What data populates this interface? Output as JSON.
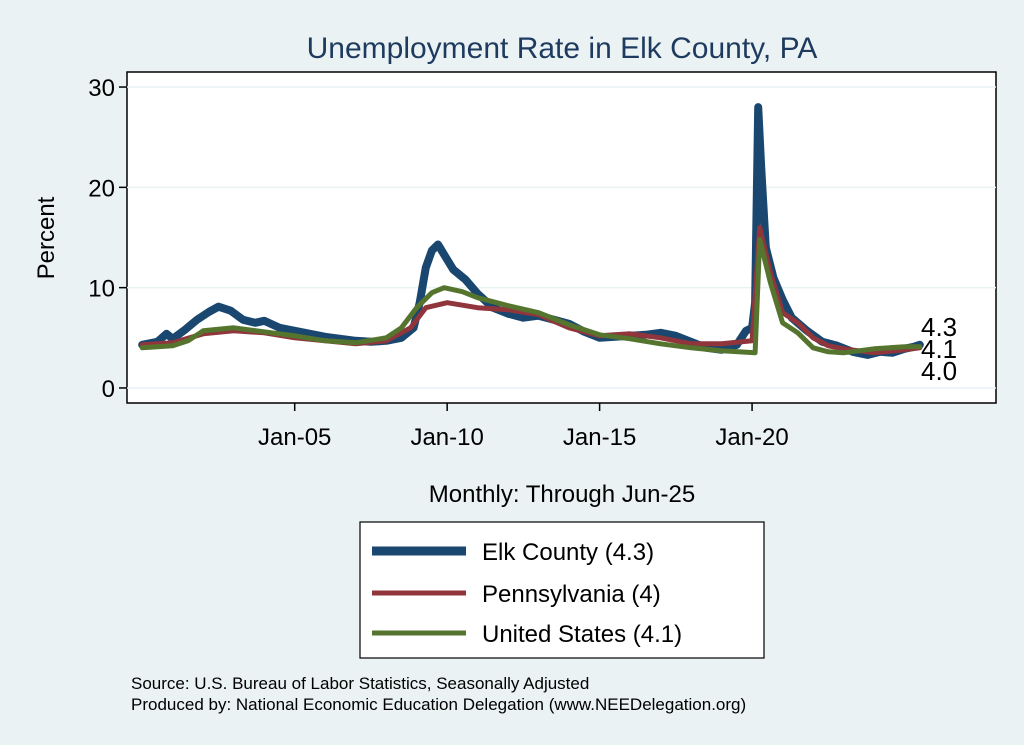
{
  "chart_data": {
    "type": "line",
    "title": "Unemployment Rate in Elk  County, PA",
    "xlabel": "Monthly: Through Jun-25",
    "ylabel": "Percent",
    "ylim": [
      -1.5,
      31.5
    ],
    "xlim": [
      1999.5,
      2028.0
    ],
    "y_ticks": [
      0,
      10,
      20,
      30
    ],
    "x_ticks": [
      {
        "value": 2005.0,
        "label": "Jan-05"
      },
      {
        "value": 2010.0,
        "label": "Jan-10"
      },
      {
        "value": 2015.0,
        "label": "Jan-15"
      },
      {
        "value": 2020.0,
        "label": "Jan-20"
      }
    ],
    "grid": true,
    "series": [
      {
        "name": "Elk  County",
        "legend": "Elk  County (4.3)",
        "color": "#1a476f",
        "last_value": "4.3",
        "points": [
          [
            2000.0,
            4.3
          ],
          [
            2000.5,
            4.6
          ],
          [
            2000.8,
            5.4
          ],
          [
            2001.0,
            4.9
          ],
          [
            2001.4,
            5.8
          ],
          [
            2001.8,
            6.8
          ],
          [
            2002.2,
            7.6
          ],
          [
            2002.5,
            8.1
          ],
          [
            2002.9,
            7.7
          ],
          [
            2003.3,
            6.8
          ],
          [
            2003.7,
            6.5
          ],
          [
            2004.0,
            6.7
          ],
          [
            2004.5,
            6.0
          ],
          [
            2005.0,
            5.7
          ],
          [
            2005.5,
            5.4
          ],
          [
            2006.0,
            5.1
          ],
          [
            2006.5,
            4.9
          ],
          [
            2007.0,
            4.7
          ],
          [
            2007.5,
            4.6
          ],
          [
            2008.0,
            4.7
          ],
          [
            2008.5,
            5.0
          ],
          [
            2008.9,
            6.0
          ],
          [
            2009.1,
            8.5
          ],
          [
            2009.3,
            12.0
          ],
          [
            2009.5,
            13.7
          ],
          [
            2009.7,
            14.3
          ],
          [
            2009.9,
            13.3
          ],
          [
            2010.2,
            11.8
          ],
          [
            2010.6,
            10.8
          ],
          [
            2011.0,
            9.4
          ],
          [
            2011.5,
            8.0
          ],
          [
            2012.0,
            7.4
          ],
          [
            2012.5,
            7.0
          ],
          [
            2013.0,
            7.2
          ],
          [
            2013.5,
            6.8
          ],
          [
            2014.0,
            6.4
          ],
          [
            2014.5,
            5.6
          ],
          [
            2015.0,
            5.0
          ],
          [
            2015.5,
            5.1
          ],
          [
            2016.0,
            5.2
          ],
          [
            2016.5,
            5.3
          ],
          [
            2017.0,
            5.5
          ],
          [
            2017.5,
            5.2
          ],
          [
            2018.0,
            4.6
          ],
          [
            2018.5,
            4.0
          ],
          [
            2019.0,
            3.8
          ],
          [
            2019.5,
            4.3
          ],
          [
            2019.8,
            5.7
          ],
          [
            2020.0,
            6.0
          ],
          [
            2020.1,
            8.5
          ],
          [
            2020.2,
            28.0
          ],
          [
            2020.3,
            22.0
          ],
          [
            2020.45,
            14.0
          ],
          [
            2020.7,
            11.0
          ],
          [
            2021.0,
            8.8
          ],
          [
            2021.3,
            7.0
          ],
          [
            2021.8,
            5.7
          ],
          [
            2022.3,
            4.6
          ],
          [
            2022.8,
            4.2
          ],
          [
            2023.3,
            3.6
          ],
          [
            2023.8,
            3.3
          ],
          [
            2024.2,
            3.6
          ],
          [
            2024.6,
            3.5
          ],
          [
            2025.0,
            3.9
          ],
          [
            2025.3,
            4.1
          ],
          [
            2025.5,
            4.3
          ]
        ]
      },
      {
        "name": "Pennsylvania",
        "legend": "Pennsylvania (4)",
        "color": "#90353b",
        "last_value": "4.0",
        "points": [
          [
            2000.0,
            4.3
          ],
          [
            2001.0,
            4.5
          ],
          [
            2002.0,
            5.4
          ],
          [
            2003.0,
            5.7
          ],
          [
            2004.0,
            5.5
          ],
          [
            2005.0,
            5.0
          ],
          [
            2006.0,
            4.7
          ],
          [
            2007.0,
            4.4
          ],
          [
            2008.0,
            4.7
          ],
          [
            2008.8,
            6.0
          ],
          [
            2009.3,
            8.0
          ],
          [
            2010.0,
            8.5
          ],
          [
            2011.0,
            8.0
          ],
          [
            2012.0,
            7.8
          ],
          [
            2013.0,
            7.3
          ],
          [
            2014.0,
            6.0
          ],
          [
            2015.0,
            5.2
          ],
          [
            2016.0,
            5.4
          ],
          [
            2017.0,
            5.0
          ],
          [
            2018.0,
            4.4
          ],
          [
            2019.0,
            4.4
          ],
          [
            2020.0,
            4.7
          ],
          [
            2020.25,
            16.0
          ],
          [
            2020.6,
            11.5
          ],
          [
            2021.0,
            7.5
          ],
          [
            2021.5,
            6.5
          ],
          [
            2022.0,
            5.0
          ],
          [
            2022.5,
            4.2
          ],
          [
            2023.0,
            3.9
          ],
          [
            2024.0,
            3.5
          ],
          [
            2025.0,
            3.8
          ],
          [
            2025.5,
            4.0
          ]
        ]
      },
      {
        "name": "United States",
        "legend": "United States (4.1)",
        "color": "#55752f",
        "last_value": "4.1",
        "points": [
          [
            2000.0,
            4.0
          ],
          [
            2001.0,
            4.2
          ],
          [
            2001.5,
            4.7
          ],
          [
            2002.0,
            5.7
          ],
          [
            2003.0,
            6.0
          ],
          [
            2004.0,
            5.6
          ],
          [
            2005.0,
            5.2
          ],
          [
            2006.0,
            4.7
          ],
          [
            2007.0,
            4.5
          ],
          [
            2008.0,
            5.0
          ],
          [
            2008.5,
            6.0
          ],
          [
            2009.0,
            8.0
          ],
          [
            2009.5,
            9.5
          ],
          [
            2009.9,
            10.0
          ],
          [
            2010.5,
            9.6
          ],
          [
            2011.0,
            9.0
          ],
          [
            2012.0,
            8.2
          ],
          [
            2013.0,
            7.5
          ],
          [
            2014.0,
            6.3
          ],
          [
            2015.0,
            5.3
          ],
          [
            2016.0,
            4.9
          ],
          [
            2017.0,
            4.4
          ],
          [
            2018.0,
            4.0
          ],
          [
            2019.0,
            3.7
          ],
          [
            2020.1,
            3.5
          ],
          [
            2020.25,
            14.8
          ],
          [
            2020.6,
            10.5
          ],
          [
            2021.0,
            6.5
          ],
          [
            2021.5,
            5.5
          ],
          [
            2022.0,
            4.0
          ],
          [
            2022.5,
            3.6
          ],
          [
            2023.0,
            3.5
          ],
          [
            2024.0,
            3.9
          ],
          [
            2025.0,
            4.1
          ],
          [
            2025.5,
            4.1
          ]
        ]
      }
    ]
  },
  "source": {
    "line1": "Source: U.S. Bureau of Labor Statistics, Seasonally Adjusted",
    "line2": "Produced by: National Economic Education Delegation (www.NEEDelegation.org)"
  }
}
